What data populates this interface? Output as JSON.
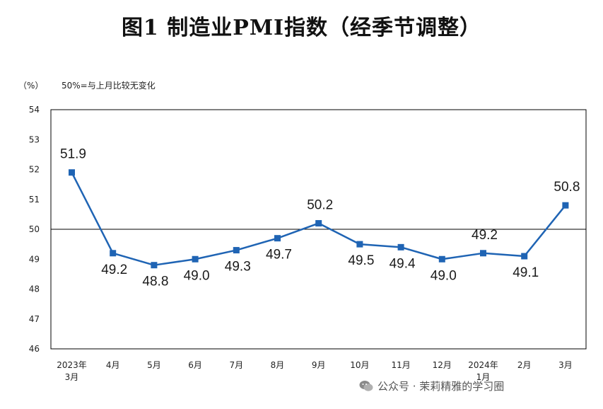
{
  "title": "图1  制造业PMI指数（经季节调整）",
  "unit_label": "（%）",
  "note": "50%=与上月比较无变化",
  "watermark": {
    "text": "公众号 · 茉莉精雅的学习圈",
    "icon": "wechat-icon"
  },
  "colors": {
    "series": "#1f64b4",
    "axis": "#000000",
    "text": "#1a1a1a"
  },
  "chart_data": {
    "type": "line",
    "title": "图1  制造业PMI指数（经季节调整）",
    "ylabel": "（%）",
    "xlabel": "",
    "ylim": [
      46,
      54
    ],
    "yticks": [
      46,
      47,
      48,
      49,
      50,
      51,
      52,
      53,
      54
    ],
    "reference_line": 50,
    "grid": false,
    "legend": "none",
    "categories": [
      [
        "2023年",
        "3月"
      ],
      [
        "4月"
      ],
      [
        "5月"
      ],
      [
        "6月"
      ],
      [
        "7月"
      ],
      [
        "8月"
      ],
      [
        "9月"
      ],
      [
        "10月"
      ],
      [
        "11月"
      ],
      [
        "12月"
      ],
      [
        "2024年",
        "1月"
      ],
      [
        "2月"
      ],
      [
        "3月"
      ]
    ],
    "series": [
      {
        "values": [
          51.9,
          49.2,
          48.8,
          49.0,
          49.3,
          49.7,
          50.2,
          49.5,
          49.4,
          49.0,
          49.2,
          49.1,
          50.8
        ],
        "labels": [
          "51.9",
          "49.2",
          "48.8",
          "49.0",
          "49.3",
          "49.7",
          "50.2",
          "49.5",
          "49.4",
          "49.0",
          "49.2",
          "49.1",
          "50.8"
        ]
      }
    ]
  }
}
